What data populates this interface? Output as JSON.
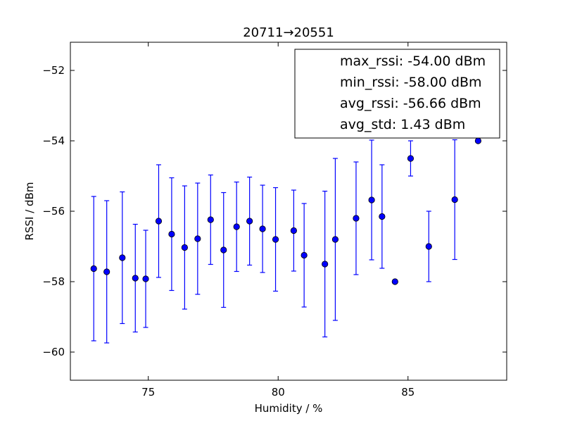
{
  "chart_data": {
    "type": "scatter",
    "title": "20711→20551",
    "xlabel": "Humidity / %",
    "ylabel": "RSSI / dBm",
    "xlim": [
      72.0,
      88.8
    ],
    "ylim": [
      -60.8,
      -51.2
    ],
    "xticks": [
      75,
      80,
      85
    ],
    "yticks": [
      -60,
      -58,
      -56,
      -54,
      -52
    ],
    "xtick_labels": [
      "75",
      "80",
      "85"
    ],
    "ytick_labels": [
      "−60",
      "−58",
      "−56",
      "−54",
      "−52"
    ],
    "grid": false,
    "legend_placement": "top-right",
    "legend": [
      "max_rssi: -54.00 dBm",
      "min_rssi: -58.00 dBm",
      "avg_rssi: -56.66 dBm",
      "avg_std: 1.43 dBm"
    ],
    "colors": {
      "marker": "#0000ff",
      "errorbar": "#0000ff",
      "axes": "#000000"
    },
    "series": [
      {
        "points": [
          {
            "x": 72.9,
            "y": -57.63,
            "err": 2.05
          },
          {
            "x": 73.4,
            "y": -57.72,
            "err": 2.02
          },
          {
            "x": 74.0,
            "y": -57.32,
            "err": 1.87
          },
          {
            "x": 74.5,
            "y": -57.9,
            "err": 1.53
          },
          {
            "x": 74.9,
            "y": -57.92,
            "err": 1.38
          },
          {
            "x": 75.4,
            "y": -56.28,
            "err": 1.6
          },
          {
            "x": 75.9,
            "y": -56.65,
            "err": 1.6
          },
          {
            "x": 76.4,
            "y": -57.03,
            "err": 1.75
          },
          {
            "x": 76.9,
            "y": -56.78,
            "err": 1.58
          },
          {
            "x": 77.4,
            "y": -56.24,
            "err": 1.27
          },
          {
            "x": 77.9,
            "y": -57.1,
            "err": 1.63
          },
          {
            "x": 78.4,
            "y": -56.44,
            "err": 1.27
          },
          {
            "x": 78.9,
            "y": -56.28,
            "err": 1.25
          },
          {
            "x": 79.4,
            "y": -56.5,
            "err": 1.24
          },
          {
            "x": 79.9,
            "y": -56.8,
            "err": 1.47
          },
          {
            "x": 80.6,
            "y": -56.55,
            "err": 1.15
          },
          {
            "x": 81.0,
            "y": -57.25,
            "err": 1.47
          },
          {
            "x": 81.8,
            "y": -57.5,
            "err": 2.07
          },
          {
            "x": 82.2,
            "y": -56.8,
            "err": 2.3
          },
          {
            "x": 83.0,
            "y": -56.2,
            "err": 1.6
          },
          {
            "x": 83.6,
            "y": -55.68,
            "err": 1.7
          },
          {
            "x": 84.0,
            "y": -56.15,
            "err": 1.47
          },
          {
            "x": 84.5,
            "y": -58.0,
            "err": 0
          },
          {
            "x": 85.1,
            "y": -54.5,
            "err": 0.5
          },
          {
            "x": 85.8,
            "y": -57.0,
            "err": 1.0
          },
          {
            "x": 86.8,
            "y": -55.67,
            "err": 1.7
          },
          {
            "x": 87.7,
            "y": -54.0,
            "err": 0
          }
        ]
      }
    ]
  }
}
